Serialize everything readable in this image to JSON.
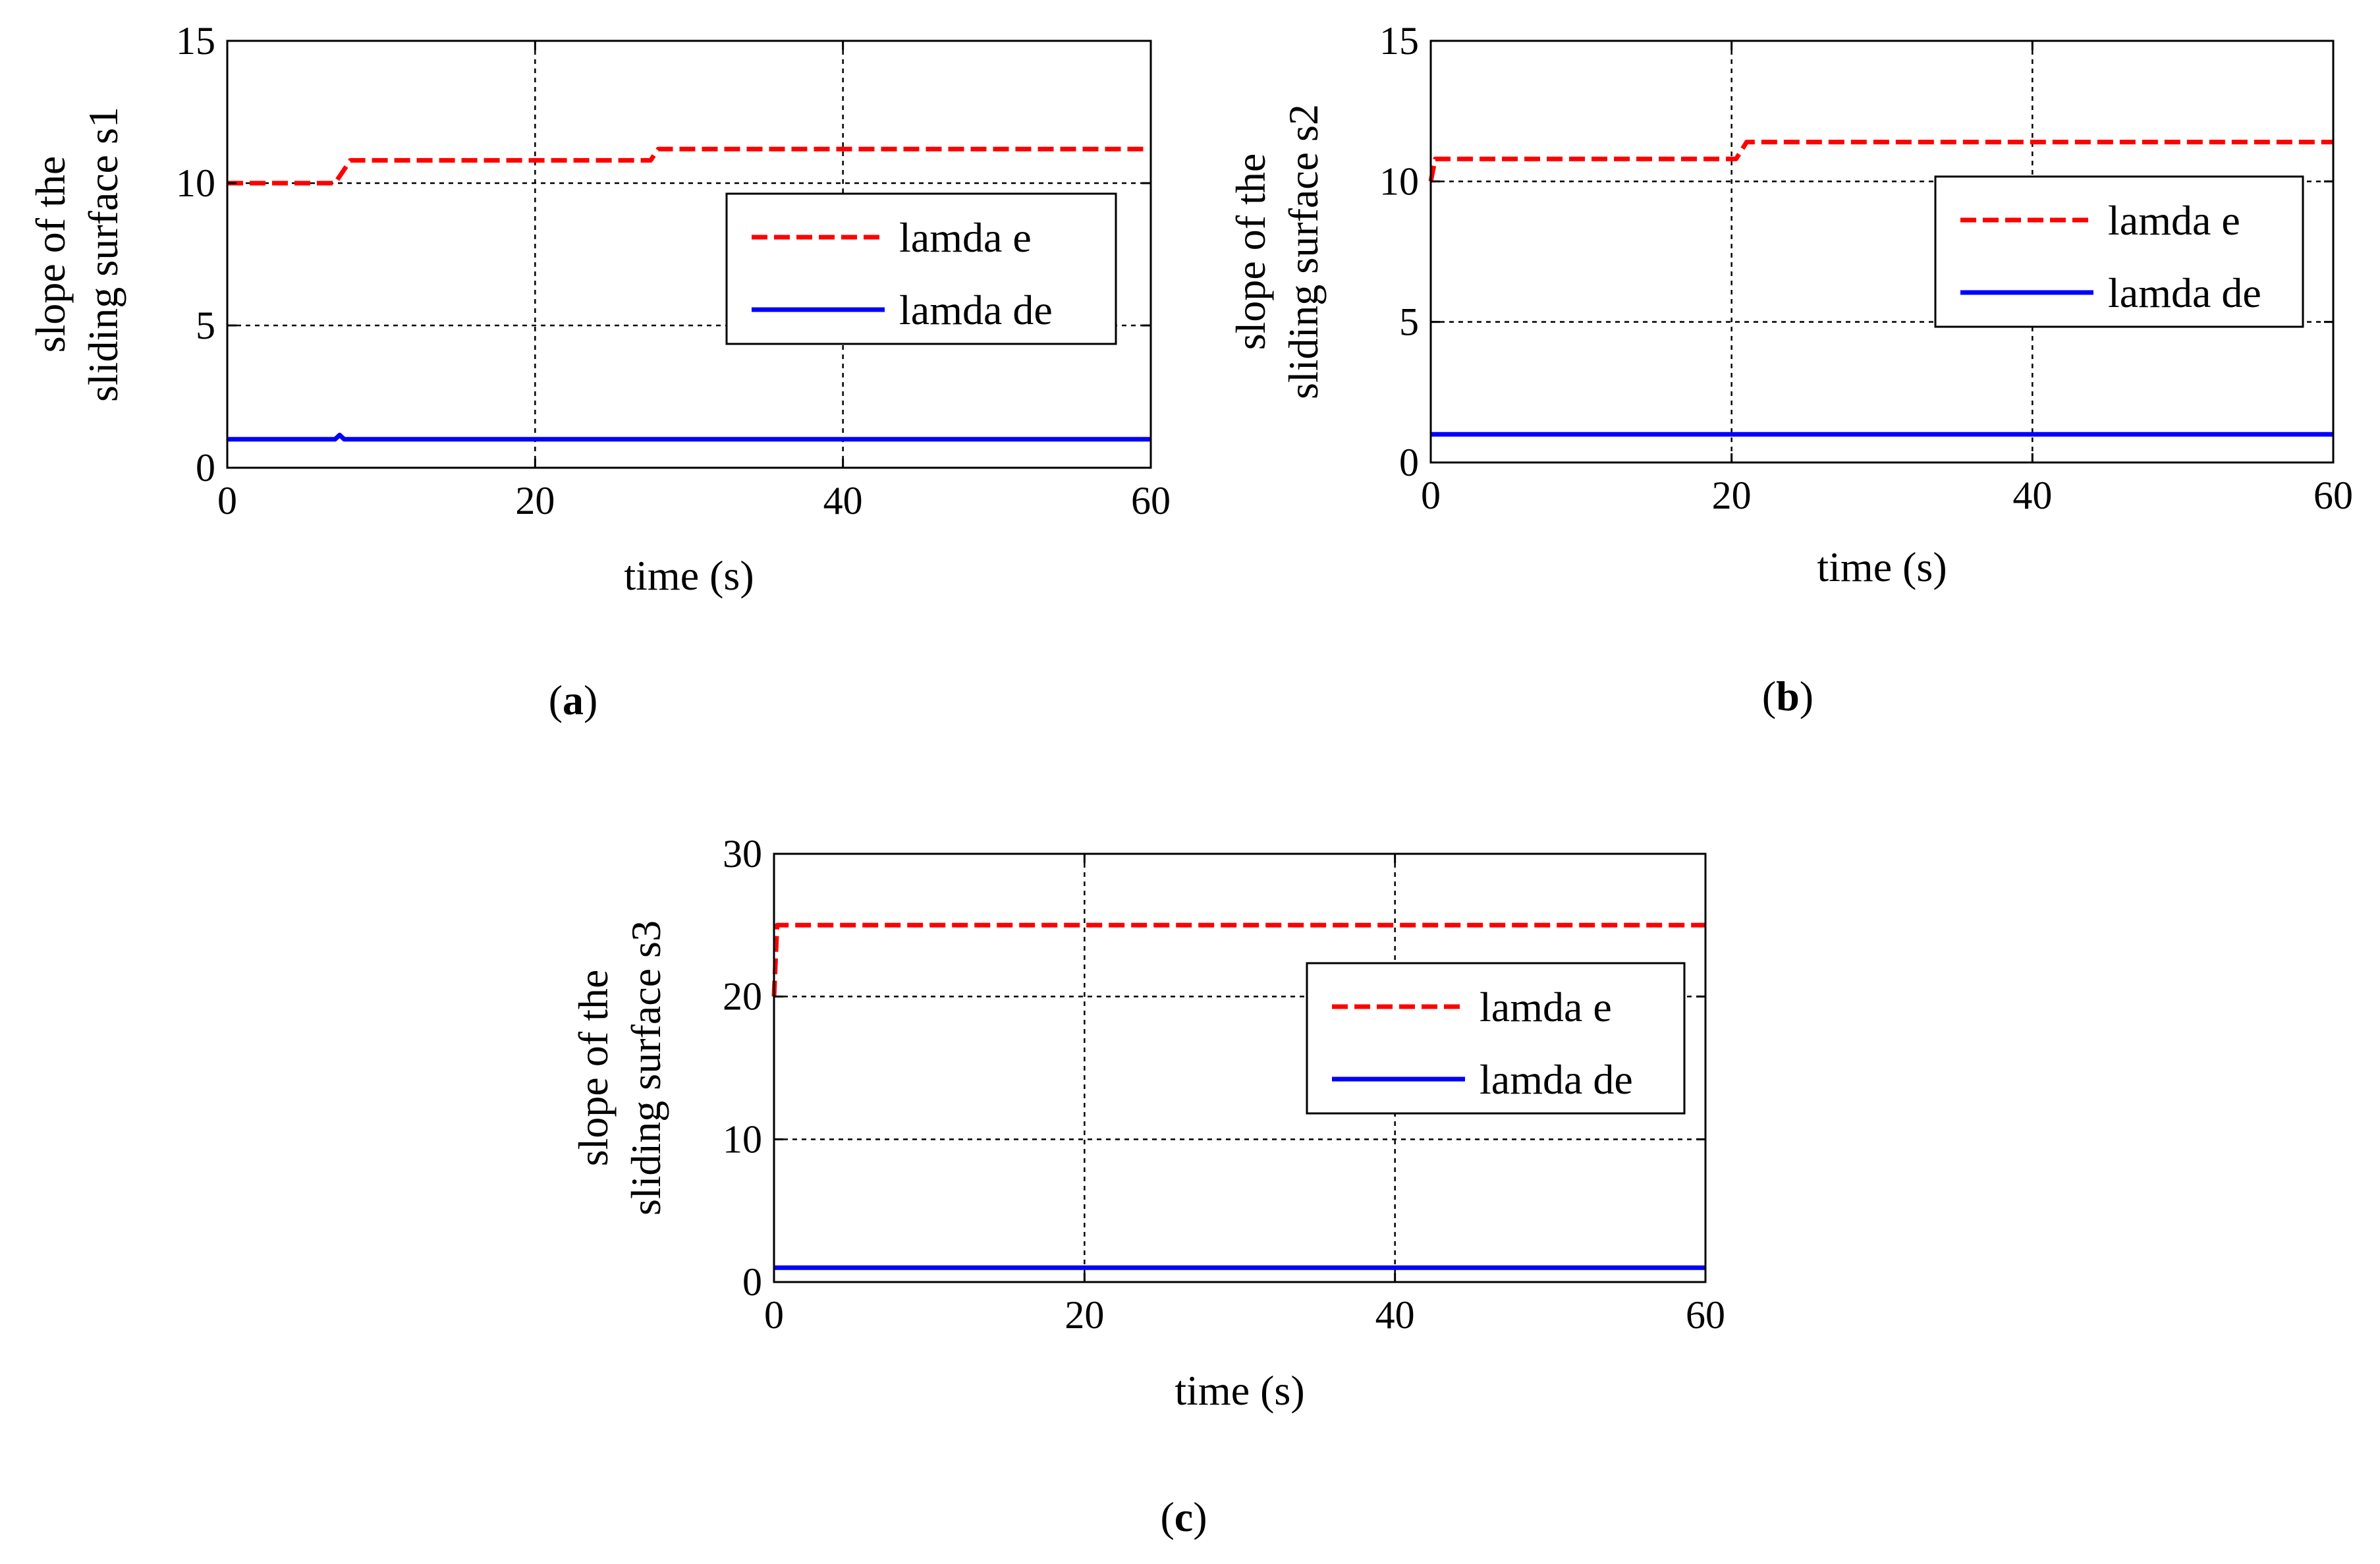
{
  "chart_data": [
    {
      "type": "line",
      "panel": "a",
      "caption_letter": "a",
      "xlabel": "time (s)",
      "ylabel_line1": "slope of the",
      "ylabel_line2": "sliding surface s1",
      "xlim": [
        0,
        60
      ],
      "ylim": [
        0,
        15
      ],
      "xticks": [
        "0",
        "20",
        "40",
        "60"
      ],
      "yticks": [
        "0",
        "5",
        "10",
        "15"
      ],
      "grid": true,
      "legend_position": "center-right",
      "series": [
        {
          "name": "lamda e",
          "color": "#ff0000",
          "style": "dashed",
          "x": [
            0,
            7,
            8,
            27.5,
            28,
            60
          ],
          "y": [
            10,
            10,
            10.8,
            10.8,
            11.2,
            11.2
          ]
        },
        {
          "name": "lamda de",
          "color": "#0000ff",
          "style": "solid",
          "x": [
            0,
            7,
            7.3,
            7.6,
            60
          ],
          "y": [
            1,
            1,
            1.15,
            1,
            1
          ]
        }
      ]
    },
    {
      "type": "line",
      "panel": "b",
      "caption_letter": "b",
      "xlabel": "time (s)",
      "ylabel_line1": "slope of the",
      "ylabel_line2": "sliding surface s2",
      "xlim": [
        0,
        60
      ],
      "ylim": [
        0,
        15
      ],
      "xticks": [
        "0",
        "20",
        "40",
        "60"
      ],
      "yticks": [
        "0",
        "5",
        "10",
        "15"
      ],
      "grid": true,
      "legend_position": "center-right",
      "series": [
        {
          "name": "lamda e",
          "color": "#ff0000",
          "style": "dashed",
          "x": [
            0,
            0.3,
            20.3,
            21,
            60
          ],
          "y": [
            10,
            10.8,
            10.8,
            11.4,
            11.4
          ]
        },
        {
          "name": "lamda de",
          "color": "#0000ff",
          "style": "solid",
          "x": [
            0,
            60
          ],
          "y": [
            1,
            1
          ]
        }
      ]
    },
    {
      "type": "line",
      "panel": "c",
      "caption_letter": "c",
      "xlabel": "time (s)",
      "ylabel_line1": "slope of the",
      "ylabel_line2": "sliding surface s3",
      "xlim": [
        0,
        60
      ],
      "ylim": [
        0,
        30
      ],
      "xticks": [
        "0",
        "20",
        "40",
        "60"
      ],
      "yticks": [
        "0",
        "10",
        "20",
        "30"
      ],
      "grid": true,
      "legend_position": "center-right",
      "series": [
        {
          "name": "lamda e",
          "color": "#ff0000",
          "style": "dashed",
          "x": [
            0,
            0.2,
            60
          ],
          "y": [
            20,
            25,
            25
          ]
        },
        {
          "name": "lamda de",
          "color": "#0000ff",
          "style": "solid",
          "x": [
            0,
            60
          ],
          "y": [
            1,
            1
          ]
        }
      ]
    }
  ]
}
